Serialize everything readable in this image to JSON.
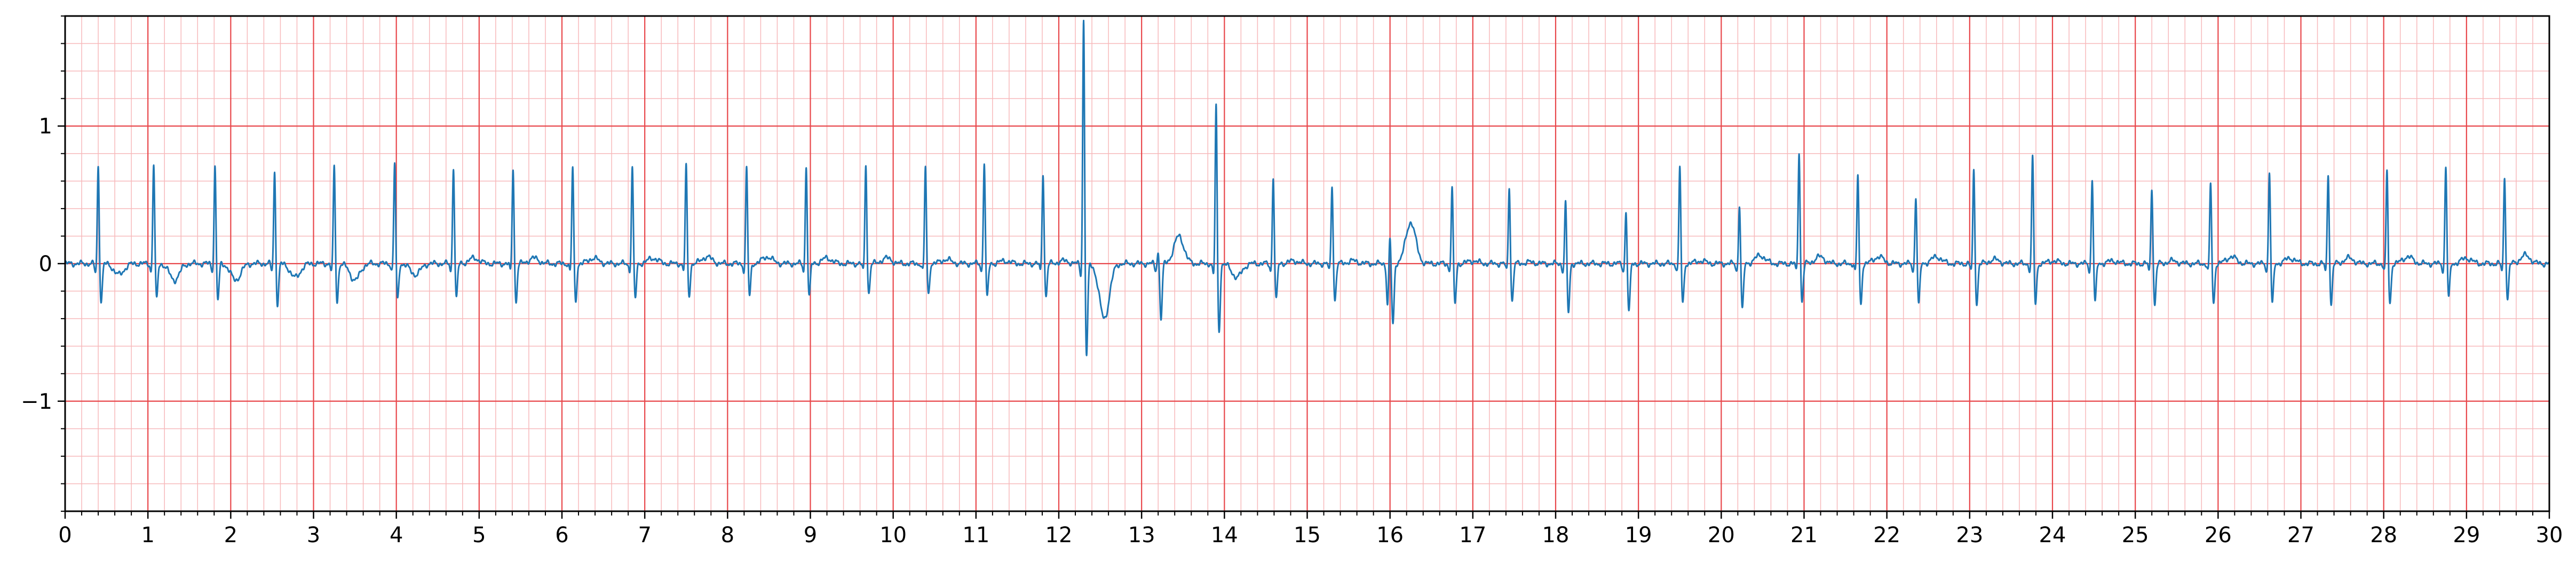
{
  "chart_data": {
    "type": "line",
    "title": "",
    "xlabel": "",
    "ylabel": "",
    "xlim": [
      0,
      30
    ],
    "ylim": [
      -1.8,
      1.8
    ],
    "grid": {
      "major": true,
      "minor": true,
      "major_x_step": 1,
      "major_y_step": 1,
      "minor_step": 0.2
    },
    "x_ticks": [
      "0",
      "1",
      "2",
      "3",
      "4",
      "5",
      "6",
      "7",
      "8",
      "9",
      "10",
      "11",
      "12",
      "13",
      "14",
      "15",
      "16",
      "17",
      "18",
      "19",
      "20",
      "21",
      "22",
      "23",
      "24",
      "25",
      "26",
      "27",
      "28",
      "29",
      "30"
    ],
    "x_tick_values": [
      0,
      1,
      2,
      3,
      4,
      5,
      6,
      7,
      8,
      9,
      10,
      11,
      12,
      13,
      14,
      15,
      16,
      17,
      18,
      19,
      20,
      21,
      22,
      23,
      24,
      25,
      26,
      27,
      28,
      29,
      30
    ],
    "y_ticks": [
      "−1",
      "0",
      "1"
    ],
    "y_tick_values": [
      -1,
      0,
      1
    ],
    "colors": {
      "line": "#1f77b4",
      "major_grid": "#e8474b",
      "minor_grid": "#f7b9bb",
      "axes": "#000000"
    },
    "series": [
      {
        "name": "",
        "beats": [
          {
            "t": 0.4,
            "r": 0.72,
            "q": -0.08,
            "s": -0.28,
            "tw": -0.08
          },
          {
            "t": 1.07,
            "r": 0.74,
            "q": -0.06,
            "s": -0.26,
            "tw": -0.12
          },
          {
            "t": 1.81,
            "r": 0.72,
            "q": -0.06,
            "s": -0.27,
            "tw": -0.12
          },
          {
            "t": 2.53,
            "r": 0.68,
            "q": -0.06,
            "s": -0.3,
            "tw": -0.1
          },
          {
            "t": 3.25,
            "r": 0.72,
            "q": -0.06,
            "s": -0.28,
            "tw": -0.12
          },
          {
            "t": 3.98,
            "r": 0.74,
            "q": -0.06,
            "s": -0.27,
            "tw": -0.08
          },
          {
            "t": 4.69,
            "r": 0.72,
            "q": -0.06,
            "s": -0.25,
            "tw": 0.04
          },
          {
            "t": 5.41,
            "r": 0.71,
            "q": -0.06,
            "s": -0.28,
            "tw": 0.04
          },
          {
            "t": 6.13,
            "r": 0.71,
            "q": -0.06,
            "s": -0.28,
            "tw": 0.04
          },
          {
            "t": 6.85,
            "r": 0.71,
            "q": -0.06,
            "s": -0.26,
            "tw": 0.04
          },
          {
            "t": 7.5,
            "r": 0.72,
            "q": -0.06,
            "s": -0.24,
            "tw": 0.05
          },
          {
            "t": 8.23,
            "r": 0.71,
            "q": -0.06,
            "s": -0.24,
            "tw": 0.05
          },
          {
            "t": 8.95,
            "r": 0.72,
            "q": -0.06,
            "s": -0.24,
            "tw": 0.04
          },
          {
            "t": 9.67,
            "r": 0.73,
            "q": -0.06,
            "s": -0.22,
            "tw": 0.04
          },
          {
            "t": 10.39,
            "r": 0.71,
            "q": -0.06,
            "s": -0.23,
            "tw": 0.03
          },
          {
            "t": 11.1,
            "r": 0.75,
            "q": -0.06,
            "s": -0.25,
            "tw": 0.02
          },
          {
            "t": 11.81,
            "r": 0.67,
            "q": -0.06,
            "s": -0.24,
            "tw": 0.02
          },
          {
            "t": 12.3,
            "r": 1.8,
            "q": -0.1,
            "s": -0.68,
            "tw": -0.4
          },
          {
            "t": 13.2,
            "r": 0.1,
            "q": -0.05,
            "s": -0.4,
            "tw": 0.2
          },
          {
            "t": 13.9,
            "r": 1.17,
            "q": -0.1,
            "s": -0.5,
            "tw": -0.1
          },
          {
            "t": 14.59,
            "r": 0.64,
            "q": -0.06,
            "s": -0.27,
            "tw": 0.02
          },
          {
            "t": 15.3,
            "r": 0.58,
            "q": -0.06,
            "s": -0.27,
            "tw": 0.02
          },
          {
            "t": 16.0,
            "r": 0.2,
            "q": -0.3,
            "s": -0.45,
            "tw": 0.3
          },
          {
            "t": 16.75,
            "r": 0.56,
            "q": -0.06,
            "s": -0.3,
            "tw": 0.02
          },
          {
            "t": 17.44,
            "r": 0.57,
            "q": -0.06,
            "s": -0.28,
            "tw": 0.01
          },
          {
            "t": 18.12,
            "r": 0.46,
            "q": -0.06,
            "s": -0.36,
            "tw": 0.0
          },
          {
            "t": 18.85,
            "r": 0.39,
            "q": -0.06,
            "s": -0.36,
            "tw": 0.0
          },
          {
            "t": 19.5,
            "r": 0.71,
            "q": -0.06,
            "s": -0.3,
            "tw": 0.02
          },
          {
            "t": 20.22,
            "r": 0.44,
            "q": -0.06,
            "s": -0.34,
            "tw": 0.06
          },
          {
            "t": 20.94,
            "r": 0.83,
            "q": -0.06,
            "s": -0.28,
            "tw": 0.05
          },
          {
            "t": 21.65,
            "r": 0.66,
            "q": -0.06,
            "s": -0.3,
            "tw": 0.05
          },
          {
            "t": 22.35,
            "r": 0.5,
            "q": -0.06,
            "s": -0.3,
            "tw": 0.05
          },
          {
            "t": 23.05,
            "r": 0.69,
            "q": -0.06,
            "s": -0.3,
            "tw": 0.03
          },
          {
            "t": 23.76,
            "r": 0.79,
            "q": -0.06,
            "s": -0.3,
            "tw": 0.02
          },
          {
            "t": 24.48,
            "r": 0.63,
            "q": -0.06,
            "s": -0.28,
            "tw": 0.02
          },
          {
            "t": 25.2,
            "r": 0.57,
            "q": -0.06,
            "s": -0.3,
            "tw": 0.02
          },
          {
            "t": 25.91,
            "r": 0.59,
            "q": -0.06,
            "s": -0.3,
            "tw": 0.05
          },
          {
            "t": 26.62,
            "r": 0.68,
            "q": -0.06,
            "s": -0.3,
            "tw": 0.04
          },
          {
            "t": 27.33,
            "r": 0.67,
            "q": -0.06,
            "s": -0.3,
            "tw": 0.04
          },
          {
            "t": 28.04,
            "r": 0.68,
            "q": -0.06,
            "s": -0.3,
            "tw": 0.05
          },
          {
            "t": 28.75,
            "r": 0.72,
            "q": -0.06,
            "s": -0.25,
            "tw": 0.04
          },
          {
            "t": 29.46,
            "r": 0.64,
            "q": -0.06,
            "s": -0.26,
            "tw": 0.06
          }
        ]
      }
    ]
  }
}
